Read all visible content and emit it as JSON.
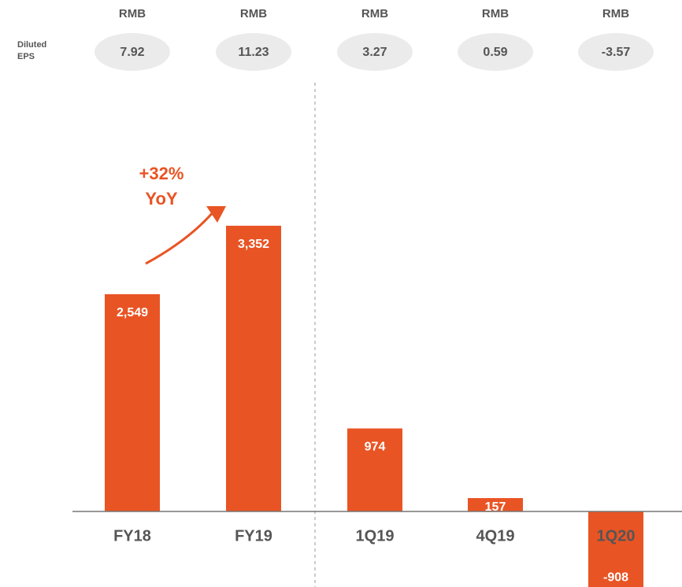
{
  "chart_data": {
    "type": "bar",
    "eps_label": "Diluted EPS",
    "eps_unit": "RMB",
    "eps_values": [
      7.92,
      11.23,
      3.27,
      0.59,
      -3.57
    ],
    "annotation": [
      "+32%",
      "YoY"
    ],
    "categories": [
      "FY18",
      "FY19",
      "1Q19",
      "4Q19",
      "1Q20"
    ],
    "values": [
      2549,
      3352,
      974,
      157,
      -908
    ],
    "value_labels": [
      "2,549",
      "3,352",
      "974",
      "157",
      "-908"
    ],
    "color": "#e95424",
    "ylim": [
      -886,
      6000
    ]
  }
}
